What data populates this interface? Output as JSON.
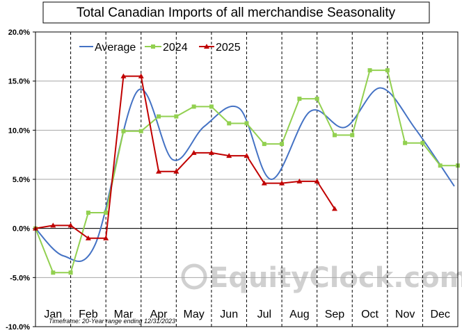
{
  "chart_data": {
    "type": "line",
    "title": "Total Canadian Imports of all merchandise  Seasonality",
    "y_ticks": [
      "20.0%",
      "15.0%",
      "10.0%",
      "5.0%",
      "0.0%",
      "-5.0%",
      "-10.0%"
    ],
    "ylim": [
      -10,
      20
    ],
    "months": [
      "Jan",
      "Feb",
      "Mar",
      "Apr",
      "May",
      "Jun",
      "Jul",
      "Aug",
      "Sep",
      "Oct",
      "Nov",
      "Dec"
    ],
    "footnote": "Timeframe: 20-Year range ending 12/31/2023",
    "watermark": "EquityClock.com",
    "legend_position": "top-left",
    "grid": "vertical dashed lines between months",
    "series": [
      {
        "name": "Average",
        "color": "#4472C4",
        "style": "smooth line",
        "x": [
          0,
          0.8,
          1.7,
          2.9,
          3.9,
          4.8,
          5.8,
          6.7,
          7.8,
          8.8,
          9.8,
          10.8,
          11.9
        ],
        "values": [
          0.0,
          -2.8,
          -1.6,
          14.0,
          7.0,
          10.4,
          12.2,
          5.0,
          11.9,
          10.3,
          14.3,
          10.1,
          4.3
        ]
      },
      {
        "name": "2024",
        "color": "#92D050",
        "marker": "square",
        "x": [
          0,
          0.5,
          1.0,
          1.5,
          2.0,
          2.5,
          3.0,
          3.5,
          4.0,
          4.5,
          5.0,
          5.5,
          6.0,
          6.5,
          7.0,
          7.5,
          8.0,
          8.5,
          9.0,
          9.5,
          10.0,
          10.5,
          11.0,
          11.5,
          12.0
        ],
        "values": [
          0.0,
          -4.5,
          -4.5,
          1.6,
          1.6,
          9.9,
          9.9,
          11.4,
          11.4,
          12.4,
          12.4,
          10.7,
          10.7,
          8.6,
          8.6,
          13.2,
          13.2,
          9.5,
          9.5,
          16.1,
          16.1,
          8.7,
          8.7,
          6.4,
          6.4
        ]
      },
      {
        "name": "2025",
        "color": "#C00000",
        "marker": "triangle",
        "x": [
          0,
          0.5,
          1.0,
          1.5,
          2.0,
          2.5,
          3.0,
          3.5,
          4.0,
          4.5,
          5.0,
          5.5,
          6.0,
          6.5,
          7.0,
          7.5,
          8.0,
          8.5
        ],
        "values": [
          0.0,
          0.3,
          0.3,
          -1.0,
          -1.0,
          15.5,
          15.5,
          5.8,
          5.8,
          7.7,
          7.7,
          7.4,
          7.4,
          4.6,
          4.6,
          4.8,
          4.8,
          2.0
        ]
      }
    ]
  }
}
